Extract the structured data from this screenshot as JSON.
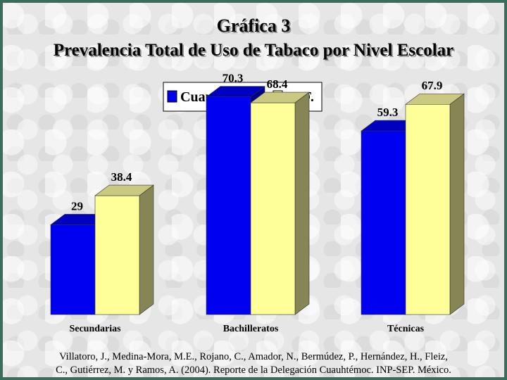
{
  "title_line1": "Gráfica 3",
  "title_line2": "Prevalencia Total de Uso de Tabaco por Nivel Escolar",
  "citation_line1": "Villatoro, J., Medina-Mora, M.E., Rojano, C., Amador, N., Bermúdez, P., Hernández, H., Fleiz,",
  "citation_line2": "C., Gutiérrez, M. y Ramos, A. (2004). Reporte de la Delegación Cuauhtémoc. INP-SEP. México.",
  "colors": {
    "series_1": "#0000f0",
    "series_2": "#ffff99",
    "border": "#3d6b5c"
  },
  "chart_data": {
    "type": "bar",
    "categories": [
      "Secundarias",
      "Bachilleratos",
      "Técnicas"
    ],
    "series": [
      {
        "name": "Cuauhtémoc",
        "values": [
          29,
          70.3,
          59.3
        ],
        "labels": [
          "29",
          "70.3",
          "59.3"
        ]
      },
      {
        "name": "D. F.",
        "values": [
          38.4,
          68.4,
          67.9
        ],
        "labels": [
          "38.4",
          "68.4",
          "67.9"
        ]
      }
    ],
    "ylim": [
      0,
      80
    ],
    "legend_position": "top-center",
    "grid": false,
    "style": "3d-bars"
  }
}
